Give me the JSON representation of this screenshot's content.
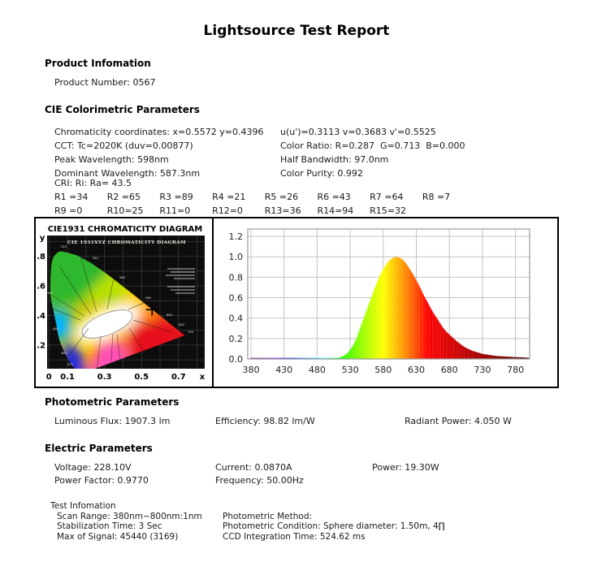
{
  "title": "Lightsource Test Report",
  "colors": {
    "text": "#1a1a1a",
    "chart_border": "#000000",
    "spectrum_grid": "#c4c4c4",
    "cie_plot_background": "#0d0d0d"
  },
  "sections": {
    "product": {
      "heading": "Product Infomation",
      "lines": [
        "Product Number: 0567"
      ]
    },
    "colorimetric": {
      "heading": "CIE Colorimetric Parameters",
      "rows": [
        {
          "left": "Chromaticity coordinates: x=0.5572 y=0.4396",
          "right": "u(u')=0.3113 v=0.3683 v'=0.5525"
        },
        {
          "left": "CCT: Tc=2020K (duv=0.00877)",
          "right": "Color Ratio: R=0.287  G=0.713  B=0.000"
        },
        {
          "left": "Peak Wavelength: 598nm",
          "right": "Half Bandwidth: 97.0nm"
        },
        {
          "left": "Dominant Wavelength: 587.3nm",
          "right": "Color Purity: 0.992"
        }
      ],
      "cri_heading": "CRI: Ri: Ra= 43.5",
      "cri_row1": [
        "R1 =34",
        "R2 =65",
        "R3 =89",
        "R4 =21",
        "R5 =26",
        "R6 =43",
        "R7 =64",
        "R8 =7"
      ],
      "cri_row2": [
        "R9 =0",
        "R10=25",
        "R11=0",
        "R12=0",
        "R13=36",
        "R14=94",
        "R15=32"
      ]
    },
    "photometric": {
      "heading": "Photometric Parameters",
      "items": [
        "Luminous Flux: 1907.3 lm",
        "Efficiency: 98.82 lm/W",
        "Radiant Power: 4.050 W"
      ]
    },
    "electric": {
      "heading": "Electric Parameters",
      "row1": [
        "Voltage: 228.10V",
        "Current: 0.0870A",
        "Power: 19.30W"
      ],
      "row2": [
        "Power Factor: 0.9770",
        "Frequency: 50.00Hz"
      ]
    },
    "test_info": {
      "heading": "Test Infomation",
      "left": [
        "Scan Range: 380nm~800nm:1nm",
        "Stabilization Time: 3 Sec",
        "Max of Signal: 45440 (3169)"
      ],
      "right": [
        "Photometric Method:",
        "Photometric Condition: Sphere diameter: 1.50m, 4∏",
        "CCD Integration Time: 524.62 ms"
      ]
    }
  },
  "chart_data": [
    {
      "type": "scatter",
      "title": "CIE1931 CHROMATICITY DIAGRAM",
      "inner_title": "CIE 1931XYZ CHROMATICITY DIAGRAM",
      "xlabel": "x",
      "ylabel": "y",
      "x_ticks": [
        "0",
        "0.1",
        "0.3",
        "0.5",
        "0.7"
      ],
      "x_tick_values": [
        0,
        0.1,
        0.3,
        0.5,
        0.7
      ],
      "y_ticks": [
        ".8",
        ".6",
        ".4",
        ".2"
      ],
      "y_tick_values": [
        0.8,
        0.6,
        0.4,
        0.2
      ],
      "xlim": [
        0,
        0.85
      ],
      "ylim": [
        0,
        0.93
      ],
      "grid": true,
      "points": [
        {
          "name": "measured-chromaticity",
          "x": 0.5572,
          "y": 0.4396,
          "marker": "+"
        }
      ]
    },
    {
      "type": "area",
      "title": "",
      "xlabel": "",
      "ylabel": "",
      "x_ticks": [
        380,
        430,
        480,
        530,
        580,
        630,
        680,
        730,
        780
      ],
      "y_ticks": [
        0.0,
        0.2,
        0.4,
        0.6,
        0.8,
        1.0,
        1.2
      ],
      "xlim": [
        375,
        801
      ],
      "ylim": [
        0,
        1.27
      ],
      "grid": true,
      "peak_wavelength_nm": 598,
      "x": [
        380,
        385,
        390,
        395,
        400,
        405,
        410,
        415,
        420,
        425,
        430,
        435,
        440,
        445,
        450,
        455,
        460,
        465,
        470,
        475,
        480,
        485,
        490,
        495,
        500,
        505,
        510,
        515,
        520,
        525,
        530,
        535,
        540,
        545,
        550,
        555,
        560,
        565,
        570,
        575,
        580,
        585,
        590,
        595,
        600,
        605,
        610,
        615,
        620,
        625,
        630,
        635,
        640,
        645,
        650,
        655,
        660,
        665,
        670,
        675,
        680,
        685,
        690,
        695,
        700,
        705,
        710,
        715,
        720,
        725,
        730,
        735,
        740,
        745,
        750,
        755,
        760,
        765,
        770,
        775,
        780,
        785,
        790,
        795,
        800
      ],
      "values": [
        0.01,
        0.01,
        0.01,
        0.01,
        0.01,
        0.01,
        0.01,
        0.01,
        0.01,
        0.01,
        0.01,
        0.01,
        0.01,
        0.01,
        0.01,
        0.01,
        0.01,
        0.01,
        0.01,
        0.01,
        0.01,
        0.01,
        0.01,
        0.01,
        0.01,
        0.01,
        0.01,
        0.015,
        0.03,
        0.05,
        0.09,
        0.14,
        0.21,
        0.3,
        0.39,
        0.48,
        0.57,
        0.66,
        0.74,
        0.82,
        0.88,
        0.93,
        0.97,
        0.99,
        1.0,
        0.99,
        0.97,
        0.93,
        0.88,
        0.83,
        0.77,
        0.71,
        0.64,
        0.58,
        0.52,
        0.46,
        0.41,
        0.36,
        0.31,
        0.27,
        0.24,
        0.21,
        0.18,
        0.155,
        0.13,
        0.11,
        0.095,
        0.08,
        0.07,
        0.06,
        0.05,
        0.045,
        0.04,
        0.035,
        0.03,
        0.028,
        0.026,
        0.024,
        0.022,
        0.02,
        0.018,
        0.017,
        0.016,
        0.014,
        0.012
      ]
    }
  ]
}
